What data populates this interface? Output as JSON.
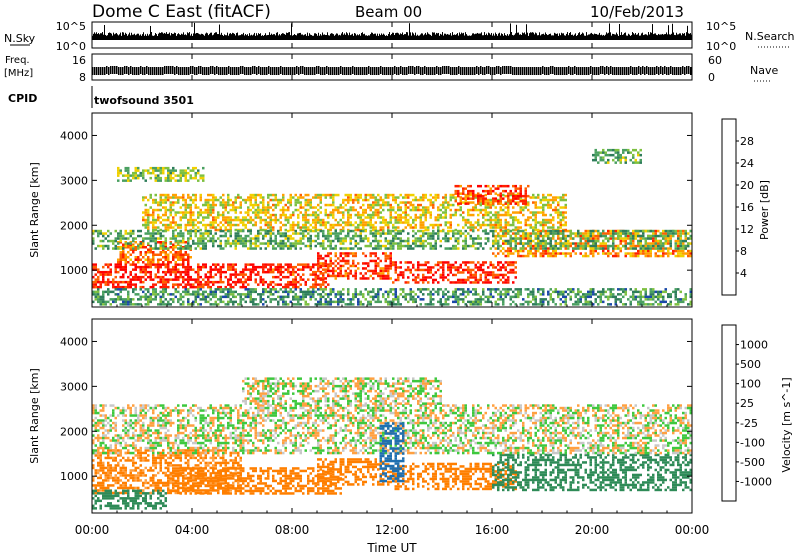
{
  "header": {
    "title": "Dome C East (fitACF)",
    "beam": "Beam 00",
    "date": "10/Feb/2013"
  },
  "strips": {
    "nsky": {
      "label": "N.Sky",
      "tick_top": "10^5",
      "tick_bottom": "10^0",
      "right_label": "N.Search",
      "right_tick_top": "10^5",
      "right_tick_bottom": "10^0"
    },
    "freq": {
      "label_line1": "Freq.",
      "label_line2": "[MHz]",
      "tick_top": "16",
      "tick_bottom": "8",
      "right_label": "Nave",
      "right_tick_top": "60",
      "right_tick_bottom": "0"
    },
    "cpid": {
      "label": "CPID",
      "value": "twofsound 3501"
    }
  },
  "x_axis": {
    "label": "Time UT",
    "ticks": [
      "00:00",
      "04:00",
      "08:00",
      "12:00",
      "16:00",
      "20:00",
      "00:00"
    ]
  },
  "colors": {
    "power_scale": [
      "#1010ff",
      "#1a48a8",
      "#2e7d5a",
      "#4aa060",
      "#7dc040",
      "#f0d000",
      "#ffa000",
      "#ff6000",
      "#ff2000",
      "#ff0000"
    ],
    "velocity_scale": [
      "#ff0000",
      "#ff4000",
      "#ff7f00",
      "#ffa040",
      "#c8c8c8",
      "#c8c8c8",
      "#3ec83e",
      "#2e8b57",
      "#1e6fb0",
      "#0000ff"
    ]
  },
  "chart_data": [
    {
      "type": "heatmap",
      "name": "power",
      "ylabel": "Slant Range [km]",
      "xlabel": "Time UT",
      "x_range_hours": [
        0,
        24
      ],
      "ylim": [
        180,
        4500
      ],
      "y_ticks": [
        1000,
        2000,
        3000,
        4000
      ],
      "colorbar": {
        "label": "Power [dB]",
        "range": [
          0,
          32
        ],
        "ticks": [
          "4",
          "8",
          "12",
          "16",
          "20",
          "24",
          "28"
        ]
      },
      "bands": [
        {
          "x": [
            0.0,
            6.5
          ],
          "y": [
            600,
            1150
          ],
          "value": 28
        },
        {
          "x": [
            1.0,
            4.0
          ],
          "y": [
            1150,
            1650
          ],
          "value": 24
        },
        {
          "x": [
            6.5,
            9.5
          ],
          "y": [
            600,
            1150
          ],
          "value": 27
        },
        {
          "x": [
            9.0,
            12.0
          ],
          "y": [
            800,
            1400
          ],
          "value": 26
        },
        {
          "x": [
            12.0,
            17.0
          ],
          "y": [
            700,
            1200
          ],
          "value": 28
        },
        {
          "x": [
            16.0,
            24.0
          ],
          "y": [
            1300,
            1900
          ],
          "value": 22
        },
        {
          "x": [
            2.0,
            19.0
          ],
          "y": [
            1900,
            2700
          ],
          "value": 18
        },
        {
          "x": [
            14.5,
            17.5
          ],
          "y": [
            2500,
            2900
          ],
          "value": 26
        },
        {
          "x": [
            0.0,
            24.0
          ],
          "y": [
            1500,
            1900
          ],
          "value": 12
        },
        {
          "x": [
            0.0,
            24.0
          ],
          "y": [
            250,
            600
          ],
          "value": 10
        },
        {
          "x": [
            1.0,
            4.5
          ],
          "y": [
            3000,
            3300
          ],
          "value": 14
        },
        {
          "x": [
            20.0,
            22.0
          ],
          "y": [
            3400,
            3700
          ],
          "value": 12
        }
      ]
    },
    {
      "type": "heatmap",
      "name": "velocity",
      "ylabel": "Slant Range [km]",
      "xlabel": "Time UT",
      "x_range_hours": [
        0,
        24
      ],
      "ylim": [
        180,
        4500
      ],
      "y_ticks": [
        1000,
        2000,
        3000,
        4000
      ],
      "colorbar": {
        "label": "Velocity [m s^-1]",
        "ticks": [
          "-1000",
          "-500",
          "-100",
          "-25",
          "25",
          "100",
          "500",
          "1000"
        ]
      },
      "bands": [
        {
          "x": [
            0.0,
            6.0
          ],
          "y": [
            600,
            1600
          ],
          "value": -150
        },
        {
          "x": [
            3.0,
            10.0
          ],
          "y": [
            600,
            1200
          ],
          "value": -300
        },
        {
          "x": [
            9.0,
            12.0
          ],
          "y": [
            800,
            1400
          ],
          "value": -200
        },
        {
          "x": [
            12.0,
            17.0
          ],
          "y": [
            700,
            1300
          ],
          "value": -250
        },
        {
          "x": [
            16.0,
            24.0
          ],
          "y": [
            700,
            1500
          ],
          "value": 300
        },
        {
          "x": [
            0.0,
            24.0
          ],
          "y": [
            1500,
            2600
          ],
          "value": 0
        },
        {
          "x": [
            6.0,
            14.0
          ],
          "y": [
            2600,
            3200
          ],
          "value": 0
        },
        {
          "x": [
            11.5,
            12.5
          ],
          "y": [
            900,
            2200
          ],
          "value": 800
        },
        {
          "x": [
            0.0,
            3.0
          ],
          "y": [
            300,
            700
          ],
          "value": 400
        }
      ]
    }
  ]
}
